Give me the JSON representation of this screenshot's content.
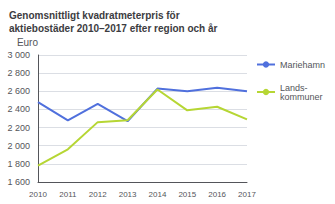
{
  "chart_data": {
    "type": "line",
    "title": "Genomsnittligt kvadratmeterpris för\naktiebostäder 2010–2017 efter region och år",
    "ylabel": "Euro",
    "categories": [
      "2010",
      "2011",
      "2012",
      "2013",
      "2014",
      "2015",
      "2016",
      "2017"
    ],
    "series": [
      {
        "name": "Mariehamn",
        "values": [
          2480,
          2280,
          2460,
          2270,
          2630,
          2600,
          2640,
          2600
        ]
      },
      {
        "name": "Lands-\nkommuner",
        "values": [
          1780,
          1960,
          2260,
          2280,
          2620,
          2390,
          2430,
          2290
        ]
      }
    ],
    "ylim": [
      1600,
      3000
    ],
    "yticks": [
      {
        "value": 1600,
        "label": "1 600"
      },
      {
        "value": 1800,
        "label": "1 800"
      },
      {
        "value": 2000,
        "label": "2 000"
      },
      {
        "value": 2200,
        "label": "2 200"
      },
      {
        "value": 2400,
        "label": "2 400"
      },
      {
        "value": 2600,
        "label": "2 600"
      },
      {
        "value": 2800,
        "label": "2 800"
      },
      {
        "value": 3000,
        "label": "3 000"
      }
    ],
    "grid": true,
    "legend": "right"
  }
}
